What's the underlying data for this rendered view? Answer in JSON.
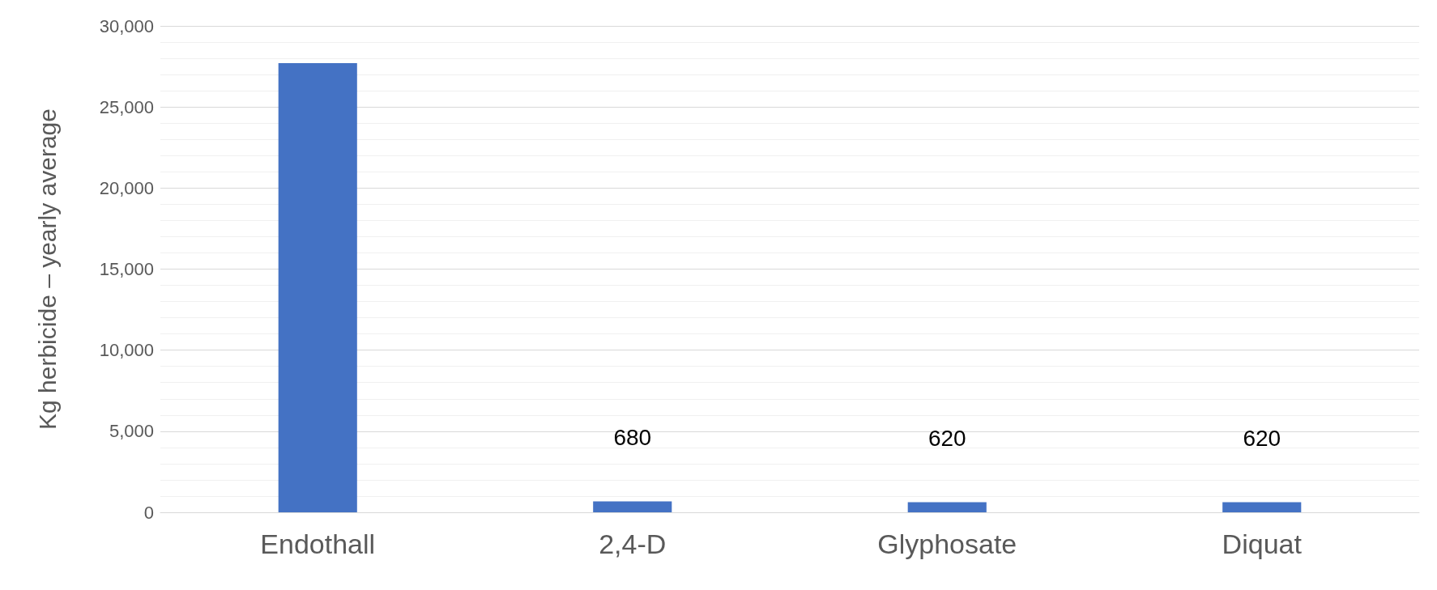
{
  "chart_data": {
    "type": "bar",
    "ylabel": "Kg herbicide – yearly average",
    "categories": [
      "Endothall",
      "2,4-D",
      "Glyphosate",
      "Diquat"
    ],
    "values": [
      27700,
      680,
      620,
      620
    ],
    "value_labels": [
      null,
      "680",
      "620",
      "620"
    ],
    "color": "#4472c4",
    "ylim": [
      0,
      30000
    ],
    "yticks": [
      0,
      {
        "value": 5000,
        "label": "5,000"
      },
      {
        "value": 10000,
        "label": "10,000"
      },
      {
        "value": 15000,
        "label": "15,000"
      },
      {
        "value": 20000,
        "label": "20,000"
      },
      {
        "value": 25000,
        "label": "25,000"
      },
      {
        "value": 30000,
        "label": "30,000"
      }
    ],
    "grid": "y"
  }
}
